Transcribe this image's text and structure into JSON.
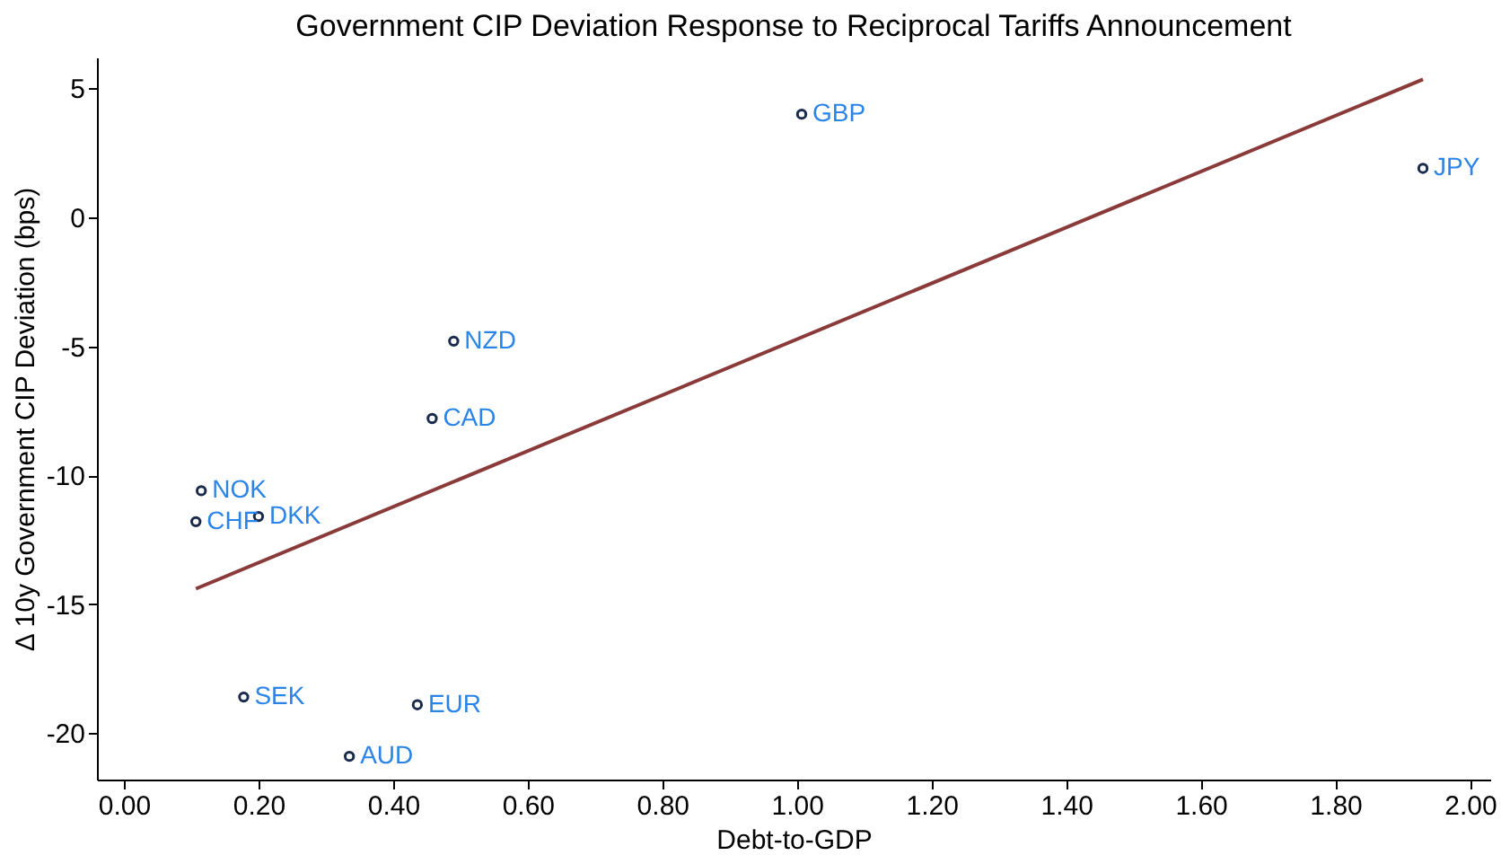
{
  "chart_data": {
    "type": "scatter",
    "title": "Government CIP Deviation Response to Reciprocal Tariffs Announcement",
    "xlabel": "Debt-to-GDP",
    "ylabel": "Δ 10y Government CIP Deviation (bps)",
    "xlim": [
      -0.04,
      2.03
    ],
    "xticks": [
      {
        "value": 0,
        "label": "0.00"
      },
      {
        "value": 0.2,
        "label": "0.20"
      },
      {
        "value": 0.4,
        "label": "0.40"
      },
      {
        "value": 0.6,
        "label": "0.60"
      },
      {
        "value": 0.8,
        "label": "0.80"
      },
      {
        "value": 1,
        "label": "1.00"
      },
      {
        "value": 1.2,
        "label": "1.20"
      },
      {
        "value": 1.4,
        "label": "1.40"
      },
      {
        "value": 1.6,
        "label": "1.60"
      },
      {
        "value": 1.8,
        "label": "1.80"
      },
      {
        "value": 2,
        "label": "2.00"
      }
    ],
    "ylim": [
      -21.8,
      6.2
    ],
    "yticks": [
      -20,
      -15,
      -10,
      -5,
      0,
      5
    ],
    "series": [
      {
        "marker": "circle",
        "color": "#1a2a4a",
        "x": [
          1.007,
          1.93,
          0.49,
          0.458,
          0.115,
          0.2,
          0.107,
          0.178,
          0.436,
          0.335
        ],
        "values": [
          4.0,
          1.9,
          -4.8,
          -7.8,
          -10.6,
          -11.6,
          -11.8,
          -18.6,
          -18.9,
          -20.9
        ]
      },
      {
        "type": "line",
        "color": "#8b3a3a",
        "x": [
          0.107,
          1.93
        ],
        "values": [
          -14.4,
          5.35
        ]
      }
    ],
    "annotations": [
      {
        "text": "GBP",
        "x": 1.007,
        "y": 4.0
      },
      {
        "text": "JPY",
        "x": 1.93,
        "y": 1.9
      },
      {
        "text": "NZD",
        "x": 0.49,
        "y": -4.8
      },
      {
        "text": "CAD",
        "x": 0.458,
        "y": -7.8
      },
      {
        "text": "NOK",
        "x": 0.115,
        "y": -10.6
      },
      {
        "text": "DKK",
        "x": 0.2,
        "y": -11.6
      },
      {
        "text": "CHF",
        "x": 0.107,
        "y": -11.8
      },
      {
        "text": "SEK",
        "x": 0.178,
        "y": -18.6
      },
      {
        "text": "EUR",
        "x": 0.436,
        "y": -18.9
      },
      {
        "text": "AUD",
        "x": 0.335,
        "y": -20.9
      }
    ]
  }
}
